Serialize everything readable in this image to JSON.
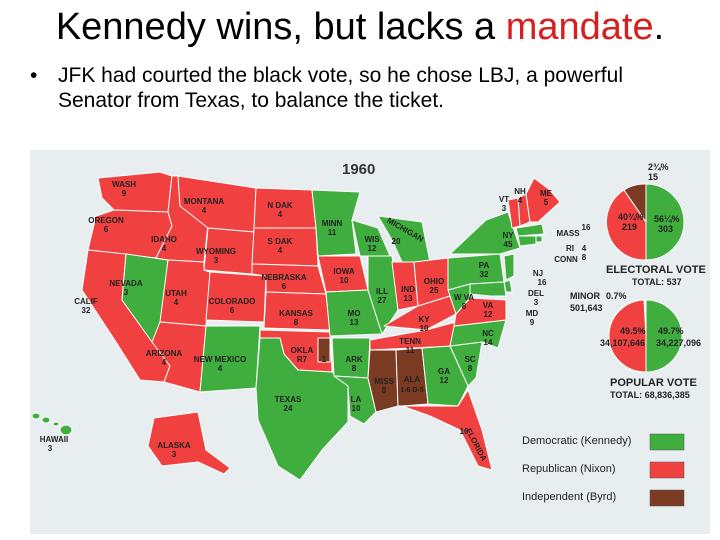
{
  "slide": {
    "title_main": "Kennedy wins, but lacks a ",
    "title_accent": "mandate",
    "title_end": ".",
    "bullet_symbol": "•",
    "bullet_text": "JFK had courted the black vote, so he chose LBJ, a powerful Senator from Texas, to balance the ticket."
  },
  "map": {
    "year": "1960",
    "colors": {
      "democratic": "#3fae3f",
      "republican": "#f04040",
      "independent": "#7a3b22",
      "ocean": "#e8eef0"
    },
    "states": [
      {
        "name": "WASH",
        "ev": "9"
      },
      {
        "name": "OREGON",
        "ev": "6"
      },
      {
        "name": "CALIF",
        "ev": "32"
      },
      {
        "name": "IDAHO",
        "ev": "4"
      },
      {
        "name": "NEVADA",
        "ev": "3"
      },
      {
        "name": "MONTANA",
        "ev": "4"
      },
      {
        "name": "WYOMING",
        "ev": "3"
      },
      {
        "name": "UTAH",
        "ev": "4"
      },
      {
        "name": "COLORADO",
        "ev": "6"
      },
      {
        "name": "ARIZONA",
        "ev": "4"
      },
      {
        "name": "NEW MEXICO",
        "ev": "4"
      },
      {
        "name": "N DAK",
        "ev": "4"
      },
      {
        "name": "S DAK",
        "ev": "4"
      },
      {
        "name": "NEBRASKA",
        "ev": "6"
      },
      {
        "name": "KANSAS",
        "ev": "8"
      },
      {
        "name": "OKLA",
        "ev": "R7"
      },
      {
        "name": "TEXAS",
        "ev": "24"
      },
      {
        "name": "MINN",
        "ev": "11"
      },
      {
        "name": "IOWA",
        "ev": "10"
      },
      {
        "name": "MO",
        "ev": "13"
      },
      {
        "name": "ARK",
        "ev": "8"
      },
      {
        "name": "LA",
        "ev": "10"
      },
      {
        "name": "WIS",
        "ev": "12"
      },
      {
        "name": "ILL",
        "ev": "27"
      },
      {
        "name": "MICHIGAN",
        "ev": "20"
      },
      {
        "name": "IND",
        "ev": "13"
      },
      {
        "name": "OHIO",
        "ev": "25"
      },
      {
        "name": "KY",
        "ev": "10"
      },
      {
        "name": "TENN",
        "ev": "11"
      },
      {
        "name": "MISS",
        "ev": "8"
      },
      {
        "name": "ALA",
        "ev": "1-6 D-5"
      },
      {
        "name": "GA",
        "ev": "12"
      },
      {
        "name": "FLORIDA",
        "ev": "10"
      },
      {
        "name": "SC",
        "ev": "8"
      },
      {
        "name": "NC",
        "ev": "14"
      },
      {
        "name": "VA",
        "ev": "12"
      },
      {
        "name": "W VA",
        "ev": "8"
      },
      {
        "name": "PA",
        "ev": "32"
      },
      {
        "name": "NY",
        "ev": "45"
      },
      {
        "name": "VT",
        "ev": "3"
      },
      {
        "name": "NH",
        "ev": "4"
      },
      {
        "name": "ME",
        "ev": "5"
      },
      {
        "name": "MASS",
        "ev": "16"
      },
      {
        "name": "RI",
        "ev": "4"
      },
      {
        "name": "CONN",
        "ev": "8"
      },
      {
        "name": "NJ",
        "ev": "16"
      },
      {
        "name": "DEL",
        "ev": "3"
      },
      {
        "name": "MD",
        "ev": "9"
      },
      {
        "name": "HAWAII",
        "ev": "3"
      },
      {
        "name": "ALASKA",
        "ev": "3"
      }
    ],
    "okla_independent_ev": "1",
    "electoral_vote": {
      "label": "ELECTORAL VOTE",
      "total_label": "TOTAL: 537",
      "independent_pct": "2¾%",
      "independent_ev": "15",
      "republican_pct": "40¾%",
      "republican_ev": "219",
      "democratic_pct": "56¼%",
      "democratic_ev": "303"
    },
    "popular_vote": {
      "label": "POPULAR VOTE",
      "total_label": "TOTAL: 68,836,385",
      "minor_label": "MINOR",
      "minor_pct": "0.7%",
      "minor_votes": "501,643",
      "republican_pct": "49.5%",
      "republican_votes": "34,107,646",
      "democratic_pct": "49.7%",
      "democratic_votes": "34,227,096"
    },
    "legend": [
      {
        "label": "Democratic (Kennedy)",
        "color": "#3fae3f"
      },
      {
        "label": "Republican (Nixon)",
        "color": "#f04040"
      },
      {
        "label": "Independent (Byrd)",
        "color": "#7a3b22"
      }
    ]
  }
}
